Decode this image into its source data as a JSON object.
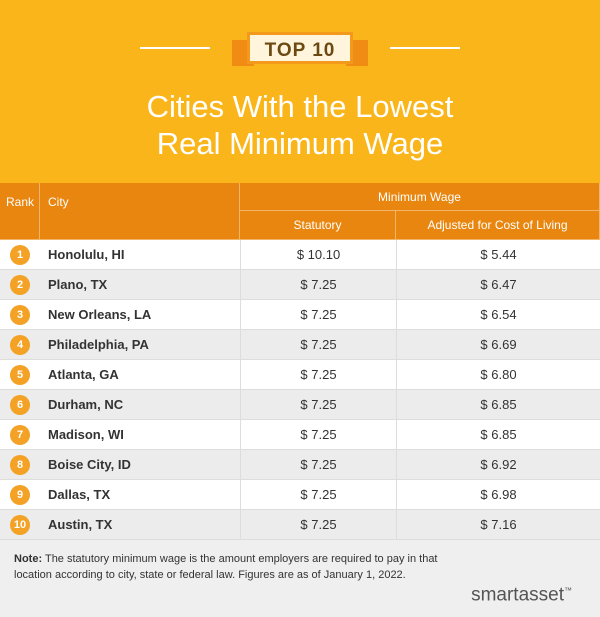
{
  "header": {
    "badge": "TOP 10",
    "title_lines": [
      "Cities With the Lowest",
      "Real Minimum Wage"
    ]
  },
  "table": {
    "columns": {
      "rank": "Rank",
      "city": "City",
      "group": "Minimum Wage",
      "statutory": "Statutory",
      "adjusted": "Adjusted for Cost of Living"
    },
    "rows": [
      [
        "1",
        "Honolulu, HI",
        "$ 10.10",
        "$ 5.44"
      ],
      [
        "2",
        "Plano, TX",
        "$ 7.25",
        "$ 6.47"
      ],
      [
        "3",
        "New Orleans, LA",
        "$ 7.25",
        "$ 6.54"
      ],
      [
        "4",
        "Philadelphia, PA",
        "$ 7.25",
        "$ 6.69"
      ],
      [
        "5",
        "Atlanta, GA",
        "$ 7.25",
        "$ 6.80"
      ],
      [
        "6",
        "Durham, NC",
        "$ 7.25",
        "$ 6.85"
      ],
      [
        "7",
        "Madison, WI",
        "$ 7.25",
        "$ 6.85"
      ],
      [
        "8",
        "Boise City, ID",
        "$ 7.25",
        "$ 6.92"
      ],
      [
        "9",
        "Dallas, TX",
        "$ 7.25",
        "$ 6.98"
      ],
      [
        "10",
        "Austin, TX",
        "$ 7.25",
        "$ 7.16"
      ]
    ]
  },
  "footer": {
    "note_label": "Note:",
    "note_text": "The statutory minimum wage is the amount employers are required to pay in that location according to city, state or federal law. Figures are as of January 1, 2022.",
    "brand": "smartasset",
    "trademark": "™"
  }
}
